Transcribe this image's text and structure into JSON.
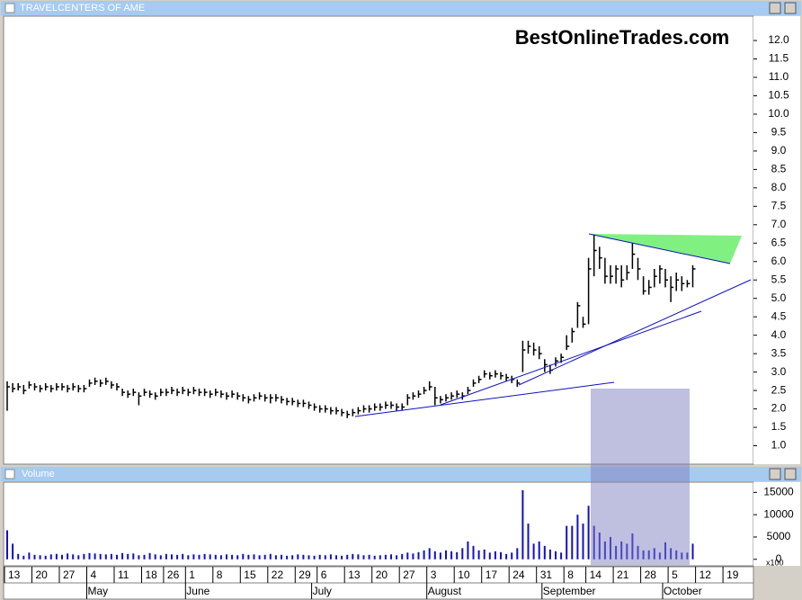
{
  "chart_data": [
    {
      "type": "hlc",
      "title": "TRAVELCENTERS OF AME",
      "watermark": "BestOnlineTrades.com",
      "color": "#000000",
      "categories": [
        "13",
        null,
        null,
        null,
        null,
        "20",
        null,
        null,
        null,
        null,
        "27",
        null,
        null,
        null,
        null,
        "4",
        null,
        null,
        null,
        null,
        "11",
        null,
        null,
        null,
        null,
        "18",
        null,
        null,
        null,
        "26",
        null,
        null,
        null,
        "1",
        null,
        null,
        null,
        null,
        "8",
        null,
        null,
        null,
        null,
        "15",
        null,
        null,
        null,
        null,
        "22",
        null,
        null,
        null,
        null,
        "29",
        null,
        null,
        null,
        "6",
        null,
        null,
        null,
        null,
        "13",
        null,
        null,
        null,
        null,
        "20",
        null,
        null,
        null,
        null,
        "27",
        null,
        null,
        null,
        null,
        "3",
        null,
        null,
        null,
        null,
        "10",
        null,
        null,
        null,
        null,
        "17",
        null,
        null,
        null,
        null,
        "24",
        null,
        null,
        null,
        null,
        "31",
        null,
        null,
        null,
        null,
        "8",
        null,
        null,
        null,
        "14",
        null,
        null,
        null,
        null,
        "21",
        null,
        null,
        null,
        null,
        "28",
        null,
        null,
        null,
        null,
        "5",
        null,
        null,
        null,
        null,
        "12",
        null,
        null,
        null,
        null,
        "19"
      ],
      "months": [
        null,
        null,
        null,
        null,
        null,
        null,
        null,
        null,
        null,
        null,
        null,
        null,
        null,
        null,
        null,
        "May",
        null,
        null,
        null,
        null,
        null,
        null,
        null,
        null,
        null,
        null,
        null,
        null,
        null,
        null,
        null,
        null,
        null,
        "June",
        null,
        null,
        null,
        null,
        null,
        null,
        null,
        null,
        null,
        null,
        null,
        null,
        null,
        null,
        null,
        null,
        null,
        null,
        null,
        null,
        null,
        null,
        "July",
        null,
        null,
        null,
        null,
        null,
        null,
        null,
        null,
        null,
        null,
        null,
        null,
        null,
        null,
        null,
        null,
        null,
        null,
        null,
        null,
        "August",
        null,
        null,
        null,
        null,
        null,
        null,
        null,
        null,
        null,
        null,
        null,
        null,
        null,
        null,
        null,
        null,
        null,
        null,
        null,
        null,
        "September",
        null,
        null,
        null,
        null,
        null,
        null,
        null,
        null,
        null,
        null,
        null,
        null,
        null,
        null,
        null,
        null,
        null,
        null,
        null,
        null,
        null,
        "October",
        null,
        null,
        null,
        null,
        null,
        null,
        null,
        null,
        null,
        null,
        null
      ],
      "high": [
        2.75,
        2.7,
        2.7,
        2.65,
        2.75,
        2.7,
        2.65,
        2.7,
        2.65,
        2.7,
        2.7,
        2.65,
        2.7,
        2.65,
        2.65,
        2.8,
        2.85,
        2.8,
        2.85,
        2.75,
        2.7,
        2.55,
        2.5,
        2.55,
        2.45,
        2.55,
        2.5,
        2.45,
        2.55,
        2.55,
        2.6,
        2.55,
        2.6,
        2.55,
        2.6,
        2.55,
        2.55,
        2.5,
        2.55,
        2.5,
        2.45,
        2.5,
        2.45,
        2.4,
        2.35,
        2.4,
        2.45,
        2.4,
        2.4,
        2.4,
        2.35,
        2.3,
        2.3,
        2.25,
        2.25,
        2.2,
        2.15,
        2.1,
        2.1,
        2.05,
        2.05,
        2.0,
        1.95,
        2.0,
        2.05,
        2.1,
        2.1,
        2.15,
        2.15,
        2.2,
        2.2,
        2.15,
        2.15,
        2.4,
        2.45,
        2.5,
        2.6,
        2.75,
        2.6,
        2.35,
        2.4,
        2.45,
        2.5,
        2.45,
        2.6,
        2.8,
        2.9,
        3.05,
        3.0,
        3.05,
        3.0,
        2.95,
        2.9,
        2.8,
        3.85,
        3.85,
        3.8,
        3.7,
        3.35,
        3.2,
        3.4,
        3.5,
        4.0,
        4.2,
        4.9,
        4.5,
        6.1,
        6.75,
        6.4,
        6.1,
        5.9,
        5.9,
        5.9,
        5.9,
        6.5,
        6.1,
        5.6,
        5.5,
        5.8,
        5.9,
        5.8,
        5.6,
        5.7,
        5.6,
        5.5,
        5.9,
        null,
        null,
        null,
        null,
        null,
        null
      ],
      "low": [
        1.95,
        2.45,
        2.5,
        2.4,
        2.55,
        2.5,
        2.45,
        2.5,
        2.45,
        2.5,
        2.5,
        2.45,
        2.5,
        2.45,
        2.45,
        2.6,
        2.65,
        2.6,
        2.65,
        2.55,
        2.5,
        2.35,
        2.3,
        2.35,
        2.1,
        2.35,
        2.3,
        2.25,
        2.35,
        2.35,
        2.4,
        2.35,
        2.4,
        2.35,
        2.4,
        2.35,
        2.35,
        2.3,
        2.35,
        2.3,
        2.25,
        2.3,
        2.25,
        2.2,
        2.15,
        2.2,
        2.25,
        2.2,
        2.15,
        2.2,
        2.15,
        2.1,
        2.1,
        2.05,
        2.05,
        2.0,
        1.95,
        1.9,
        1.9,
        1.85,
        1.85,
        1.8,
        1.75,
        1.8,
        1.85,
        1.9,
        1.9,
        1.95,
        1.95,
        2.0,
        2.0,
        1.95,
        1.95,
        2.1,
        2.25,
        2.3,
        2.4,
        2.5,
        2.1,
        2.15,
        2.2,
        2.25,
        2.3,
        2.25,
        2.4,
        2.6,
        2.7,
        2.85,
        2.8,
        2.85,
        2.8,
        2.75,
        2.7,
        2.6,
        3.0,
        3.5,
        3.45,
        3.35,
        3.0,
        2.95,
        3.15,
        3.25,
        3.6,
        3.8,
        4.2,
        4.2,
        4.3,
        5.6,
        5.8,
        5.4,
        5.4,
        5.4,
        5.3,
        5.5,
        5.8,
        5.5,
        5.1,
        5.1,
        5.3,
        5.4,
        5.3,
        4.9,
        5.2,
        5.2,
        5.3,
        5.3,
        null,
        null,
        null,
        null,
        null,
        null
      ],
      "close": [
        2.6,
        2.55,
        2.6,
        2.5,
        2.65,
        2.6,
        2.55,
        2.6,
        2.55,
        2.6,
        2.6,
        2.55,
        2.6,
        2.55,
        2.55,
        2.7,
        2.75,
        2.7,
        2.75,
        2.65,
        2.6,
        2.45,
        2.4,
        2.45,
        2.35,
        2.45,
        2.4,
        2.35,
        2.45,
        2.45,
        2.5,
        2.45,
        2.5,
        2.45,
        2.5,
        2.45,
        2.45,
        2.4,
        2.45,
        2.4,
        2.35,
        2.4,
        2.35,
        2.3,
        2.25,
        2.3,
        2.35,
        2.3,
        2.3,
        2.3,
        2.25,
        2.2,
        2.2,
        2.15,
        2.15,
        2.1,
        2.05,
        2.0,
        2.0,
        1.95,
        1.95,
        1.9,
        1.85,
        1.9,
        1.95,
        2.0,
        2.0,
        2.05,
        2.05,
        2.1,
        2.1,
        2.05,
        2.05,
        2.3,
        2.35,
        2.4,
        2.5,
        2.6,
        2.3,
        2.25,
        2.3,
        2.35,
        2.4,
        2.35,
        2.5,
        2.7,
        2.8,
        2.95,
        2.9,
        2.95,
        2.9,
        2.85,
        2.8,
        2.7,
        3.6,
        3.7,
        3.6,
        3.5,
        3.2,
        3.05,
        3.3,
        3.4,
        3.7,
        4.1,
        4.8,
        4.3,
        5.8,
        6.3,
        6.1,
        5.6,
        5.6,
        5.8,
        5.5,
        5.7,
        6.2,
        5.8,
        5.2,
        5.3,
        5.6,
        5.8,
        5.5,
        5.3,
        5.5,
        5.4,
        5.4,
        5.8,
        null,
        null,
        null,
        null,
        null,
        null
      ],
      "ylim": [
        0.5,
        12.66
      ],
      "yticks": [
        {
          "value": 1,
          "label": "1.0"
        },
        {
          "value": 1.5,
          "label": "1.5"
        },
        {
          "value": 2,
          "label": "2.0"
        },
        {
          "value": 2.5,
          "label": "2.5"
        },
        {
          "value": 3,
          "label": "3.0"
        },
        {
          "value": 3.5,
          "label": "3.5"
        },
        {
          "value": 4,
          "label": "4.0"
        },
        {
          "value": 4.5,
          "label": "4.5"
        },
        {
          "value": 5,
          "label": "5.0"
        },
        {
          "value": 5.5,
          "label": "5.5"
        },
        {
          "value": 6,
          "label": "6.0"
        },
        {
          "value": 6.5,
          "label": "6.5"
        },
        {
          "value": 7,
          "label": "7.0"
        },
        {
          "value": 7.5,
          "label": "7.5"
        },
        {
          "value": 8,
          "label": "8.0"
        },
        {
          "value": 8.5,
          "label": "8.5"
        },
        {
          "value": 9,
          "label": "9.0"
        },
        {
          "value": 9.5,
          "label": "9.5"
        },
        {
          "value": 10,
          "label": "10.0"
        },
        {
          "value": 10.5,
          "label": "10.5"
        },
        {
          "value": 11,
          "label": "11.0"
        },
        {
          "value": 11.5,
          "label": "11.5"
        },
        {
          "value": 12,
          "label": "12.0"
        }
      ]
    },
    {
      "type": "bar",
      "title": "Volume",
      "unit_label": "x100",
      "color": "#1010c8",
      "values": [
        6500,
        3500,
        1200,
        800,
        1500,
        1000,
        900,
        800,
        1100,
        1200,
        1000,
        1300,
        1100,
        900,
        1200,
        1400,
        1300,
        1200,
        1100,
        1200,
        1000,
        1400,
        1200,
        1300,
        900,
        1000,
        1400,
        1100,
        900,
        1200,
        1100,
        1000,
        1200,
        900,
        1100,
        1000,
        1200,
        1100,
        1000,
        900,
        1100,
        1000,
        900,
        1200,
        1000,
        1100,
        900,
        1000,
        1200,
        900,
        1000,
        800,
        900,
        1100,
        1000,
        900,
        800,
        1000,
        900,
        1100,
        900,
        800,
        1000,
        1200,
        1100,
        900,
        1000,
        800,
        900,
        1000,
        1100,
        900,
        1200,
        1500,
        1300,
        1600,
        2000,
        2500,
        1800,
        1500,
        2000,
        1800,
        1600,
        2500,
        4000,
        3000,
        2000,
        2200,
        1500,
        1800,
        1600,
        1200,
        1500,
        2500,
        15500,
        8000,
        3500,
        4000,
        3000,
        2200,
        1800,
        1500,
        7500,
        7500,
        10000,
        8000,
        12000,
        7500,
        6000,
        4000,
        5000,
        3000,
        4000,
        3500,
        5800,
        3000,
        2000,
        2000,
        2500,
        1500,
        3800,
        2500,
        2000,
        1500,
        1500,
        3500,
        null,
        null,
        null,
        null,
        null,
        null
      ],
      "ylim": [
        -1460,
        17290
      ],
      "yticks": [
        0,
        5000,
        10000,
        15000
      ]
    }
  ]
}
